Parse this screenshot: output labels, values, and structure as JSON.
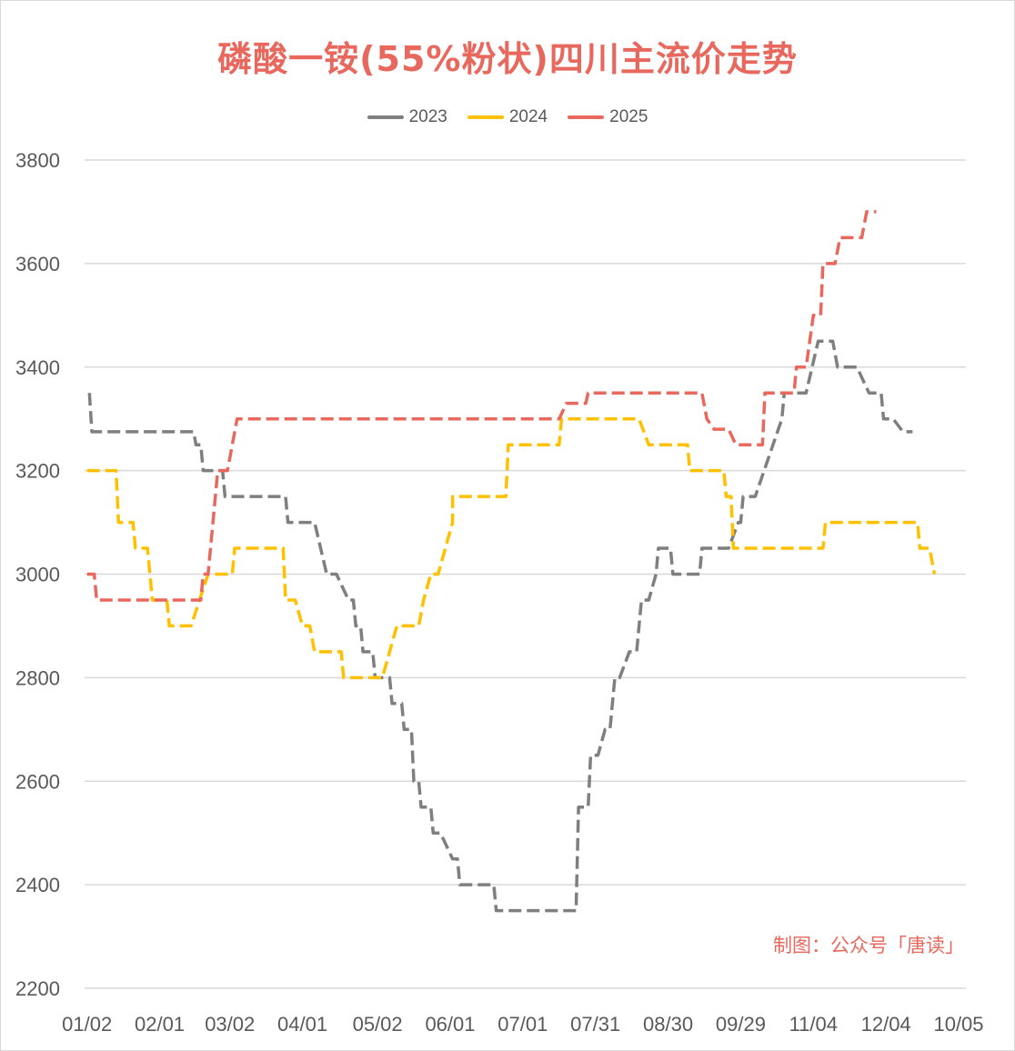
{
  "chart_data": {
    "type": "line",
    "title": "磷酸一铵(55%粉状)四川主流价走势",
    "xlabel": "",
    "ylabel": "",
    "ylim": [
      2200,
      3800
    ],
    "yticks": [
      2200,
      2400,
      2600,
      2800,
      3000,
      3200,
      3400,
      3600,
      3800
    ],
    "xlim": [
      1,
      365
    ],
    "xticks": [
      {
        "day": 2,
        "label": "01/02"
      },
      {
        "day": 32,
        "label": "02/01"
      },
      {
        "day": 61,
        "label": "03/02"
      },
      {
        "day": 91,
        "label": "04/01"
      },
      {
        "day": 122,
        "label": "05/02"
      },
      {
        "day": 152,
        "label": "06/01"
      },
      {
        "day": 182,
        "label": "07/01"
      },
      {
        "day": 212,
        "label": "07/31"
      },
      {
        "day": 242,
        "label": "08/30"
      },
      {
        "day": 272,
        "label": "09/29"
      },
      {
        "day": 302,
        "label": "11/04"
      },
      {
        "day": 332,
        "label": "12/04"
      },
      {
        "day": 362,
        "label": "10/05"
      }
    ],
    "grid": true,
    "legend_position": "top",
    "annotation": "制图：公众号「唐读」",
    "series": [
      {
        "name": "2023",
        "color": "#7f7f7f",
        "points": [
          [
            3,
            3350
          ],
          [
            4,
            3275
          ],
          [
            32,
            3275
          ],
          [
            46,
            3275
          ],
          [
            47,
            3250
          ],
          [
            49,
            3250
          ],
          [
            50,
            3200
          ],
          [
            58,
            3200
          ],
          [
            59,
            3150
          ],
          [
            84,
            3150
          ],
          [
            85,
            3100
          ],
          [
            96,
            3100
          ],
          [
            101,
            3000
          ],
          [
            105,
            3000
          ],
          [
            110,
            2950
          ],
          [
            112,
            2950
          ],
          [
            113,
            2900
          ],
          [
            115,
            2900
          ],
          [
            116,
            2850
          ],
          [
            120,
            2850
          ],
          [
            121,
            2800
          ],
          [
            127,
            2800
          ],
          [
            128,
            2750
          ],
          [
            132,
            2750
          ],
          [
            133,
            2700
          ],
          [
            136,
            2700
          ],
          [
            137,
            2600
          ],
          [
            139,
            2600
          ],
          [
            140,
            2550
          ],
          [
            144,
            2550
          ],
          [
            145,
            2500
          ],
          [
            148,
            2500
          ],
          [
            153,
            2450
          ],
          [
            155,
            2450
          ],
          [
            156,
            2400
          ],
          [
            170,
            2400
          ],
          [
            171,
            2350
          ],
          [
            204,
            2350
          ],
          [
            205,
            2550
          ],
          [
            209,
            2550
          ],
          [
            210,
            2650
          ],
          [
            213,
            2650
          ],
          [
            216,
            2700
          ],
          [
            218,
            2700
          ],
          [
            220,
            2800
          ],
          [
            222,
            2800
          ],
          [
            226,
            2850
          ],
          [
            229,
            2850
          ],
          [
            231,
            2950
          ],
          [
            234,
            2950
          ],
          [
            237,
            3000
          ],
          [
            238,
            3050
          ],
          [
            243,
            3050
          ],
          [
            244,
            3000
          ],
          [
            255,
            3000
          ],
          [
            256,
            3050
          ],
          [
            267,
            3050
          ],
          [
            271,
            3100
          ],
          [
            272,
            3100
          ],
          [
            273,
            3150
          ],
          [
            278,
            3150
          ],
          [
            289,
            3300
          ],
          [
            290,
            3350
          ],
          [
            299,
            3350
          ],
          [
            304,
            3450
          ],
          [
            310,
            3450
          ],
          [
            312,
            3400
          ],
          [
            320,
            3400
          ],
          [
            325,
            3350
          ],
          [
            330,
            3350
          ],
          [
            331,
            3300
          ],
          [
            335,
            3300
          ],
          [
            339,
            3275
          ],
          [
            343,
            3275
          ]
        ]
      },
      {
        "name": "2024",
        "color": "#ffc000",
        "points": [
          [
            2,
            3200
          ],
          [
            14,
            3200
          ],
          [
            15,
            3100
          ],
          [
            21,
            3100
          ],
          [
            22,
            3050
          ],
          [
            27,
            3050
          ],
          [
            29,
            2950
          ],
          [
            35,
            2950
          ],
          [
            36,
            2900
          ],
          [
            45,
            2900
          ],
          [
            52,
            3000
          ],
          [
            62,
            3000
          ],
          [
            63,
            3050
          ],
          [
            83,
            3050
          ],
          [
            84,
            2950
          ],
          [
            88,
            2950
          ],
          [
            91,
            2900
          ],
          [
            94,
            2900
          ],
          [
            96,
            2850
          ],
          [
            107,
            2850
          ],
          [
            108,
            2800
          ],
          [
            124,
            2800
          ],
          [
            130,
            2900
          ],
          [
            139,
            2900
          ],
          [
            141,
            2950
          ],
          [
            144,
            3000
          ],
          [
            147,
            3000
          ],
          [
            153,
            3100
          ],
          [
            153,
            3150
          ],
          [
            175,
            3150
          ],
          [
            176,
            3250
          ],
          [
            197,
            3250
          ],
          [
            198,
            3300
          ],
          [
            230,
            3300
          ],
          [
            234,
            3250
          ],
          [
            250,
            3250
          ],
          [
            251,
            3200
          ],
          [
            265,
            3200
          ],
          [
            266,
            3150
          ],
          [
            268,
            3150
          ],
          [
            269,
            3050
          ],
          [
            306,
            3050
          ],
          [
            307,
            3100
          ],
          [
            345,
            3100
          ],
          [
            346,
            3050
          ],
          [
            350,
            3050
          ],
          [
            352,
            3000
          ]
        ]
      },
      {
        "name": "2025",
        "color": "#e8685e",
        "points": [
          [
            2,
            3000
          ],
          [
            5,
            3000
          ],
          [
            6,
            2950
          ],
          [
            49,
            2950
          ],
          [
            50,
            3000
          ],
          [
            52,
            3000
          ],
          [
            55,
            3150
          ],
          [
            56,
            3200
          ],
          [
            60,
            3200
          ],
          [
            62,
            3250
          ],
          [
            64,
            3300
          ],
          [
            197,
            3300
          ],
          [
            200,
            3330
          ],
          [
            208,
            3330
          ],
          [
            209,
            3350
          ],
          [
            256,
            3350
          ],
          [
            258,
            3300
          ],
          [
            261,
            3280
          ],
          [
            267,
            3280
          ],
          [
            270,
            3250
          ],
          [
            281,
            3250
          ],
          [
            282,
            3350
          ],
          [
            294,
            3350
          ],
          [
            295,
            3400
          ],
          [
            299,
            3400
          ],
          [
            302,
            3500
          ],
          [
            305,
            3500
          ],
          [
            306,
            3600
          ],
          [
            311,
            3600
          ],
          [
            313,
            3650
          ],
          [
            322,
            3650
          ],
          [
            324,
            3700
          ],
          [
            328,
            3700
          ]
        ]
      }
    ]
  }
}
